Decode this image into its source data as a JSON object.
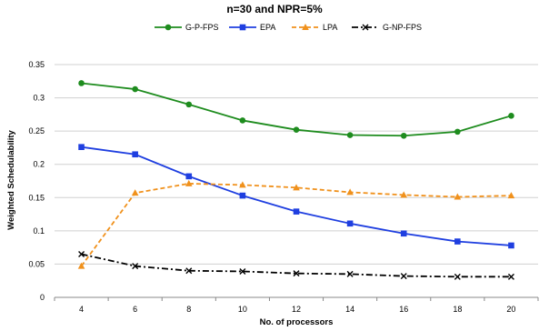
{
  "chart_data": {
    "type": "line",
    "title": "n=30 and NPR=5%",
    "xlabel": "No. of processors",
    "ylabel": "Weighted Schedulability",
    "x": [
      4,
      6,
      8,
      10,
      12,
      14,
      16,
      18,
      20
    ],
    "x_tick_labels": [
      "4",
      "6",
      "8",
      "10",
      "12",
      "14",
      "16",
      "18",
      "20"
    ],
    "ylim": [
      0,
      0.35
    ],
    "y_ticks": [
      0,
      0.05,
      0.1,
      0.15,
      0.2,
      0.25,
      0.3,
      0.35
    ],
    "y_tick_labels": [
      "0",
      "0.05",
      "0.1",
      "0.15",
      "0.2",
      "0.25",
      "0.3",
      "0.35"
    ],
    "grid": "horizontal",
    "legend_position": "top",
    "series": [
      {
        "name": "G-P-FPS",
        "color": "#1e8c1e",
        "marker": "circle",
        "dash": "solid",
        "values": [
          0.322,
          0.313,
          0.29,
          0.266,
          0.252,
          0.244,
          0.243,
          0.249,
          0.273
        ]
      },
      {
        "name": "EPA",
        "color": "#1f3fe0",
        "marker": "square",
        "dash": "solid",
        "values": [
          0.226,
          0.215,
          0.182,
          0.153,
          0.129,
          0.111,
          0.096,
          0.084,
          0.078
        ]
      },
      {
        "name": "LPA",
        "color": "#f0911c",
        "marker": "triangle",
        "dash": "dashed",
        "values": [
          0.047,
          0.157,
          0.171,
          0.169,
          0.165,
          0.158,
          0.154,
          0.151,
          0.153
        ]
      },
      {
        "name": "G-NP-FPS",
        "color": "#000000",
        "marker": "x",
        "dash": "dashdot",
        "values": [
          0.065,
          0.047,
          0.04,
          0.039,
          0.036,
          0.035,
          0.032,
          0.031,
          0.031
        ]
      }
    ]
  }
}
